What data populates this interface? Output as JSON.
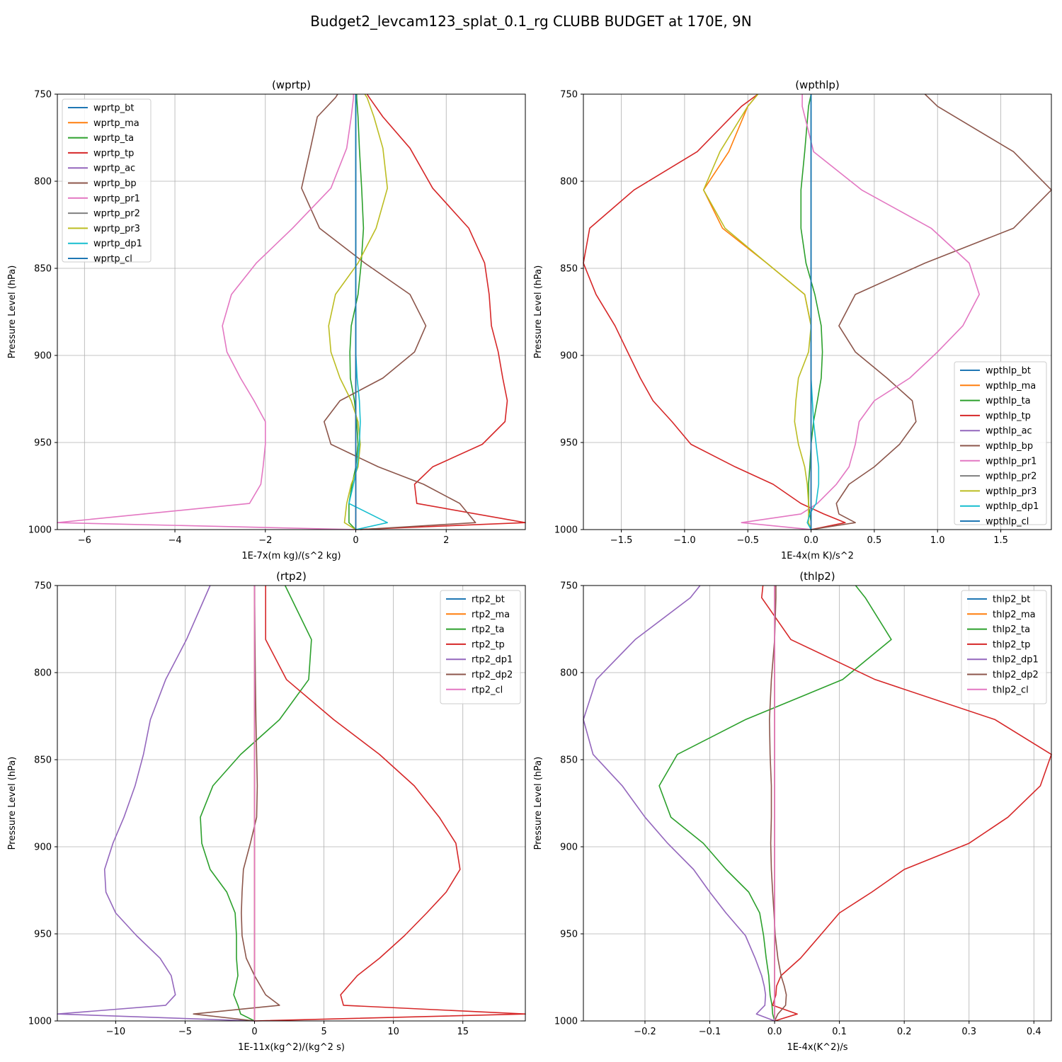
{
  "figure_title": "Budget2_levcam123_splat_0.1_rg CLUBB BUDGET at 170E, 9N",
  "colors": [
    "#1f77b4",
    "#ff7f0e",
    "#2ca02c",
    "#d62728",
    "#9467bd",
    "#8c564b",
    "#e377c2",
    "#7f7f7f",
    "#bcbd22",
    "#17becf"
  ],
  "chart_data": [
    {
      "type": "line",
      "title": "(wprtp)",
      "xlabel": "1E-7x(m kg)/(s^2 kg)",
      "ylabel": "Pressure Level (hPa)",
      "xlim": [
        -6.6,
        3.75
      ],
      "ylim": [
        1000,
        750
      ],
      "xticks": [
        -6,
        -4,
        -2,
        0,
        2
      ],
      "xtick_labels": [
        "−6",
        "−4",
        "−2",
        "0",
        "2"
      ],
      "yticks": [
        750,
        800,
        850,
        900,
        950,
        1000
      ],
      "grid": true,
      "legend_position": "upper left",
      "p": [
        750,
        752,
        763,
        781,
        804,
        827,
        847,
        865,
        883,
        898,
        913,
        926,
        938,
        951,
        964,
        974,
        985,
        996,
        1000
      ],
      "series": [
        {
          "name": "wprtp_bt",
          "color": "#1f77b4",
          "x": [
            0,
            0,
            0,
            0,
            0,
            0,
            0,
            0,
            0,
            0,
            0,
            0,
            0,
            0,
            0,
            0,
            0,
            0,
            0
          ]
        },
        {
          "name": "wprtp_ma",
          "color": "#ff7f0e",
          "x": [
            0,
            0,
            0,
            0,
            0,
            0,
            0,
            0,
            0,
            0,
            0,
            0,
            0,
            0,
            0,
            0,
            0,
            0,
            0
          ]
        },
        {
          "name": "wprtp_ta",
          "color": "#2ca02c",
          "x": [
            0.02,
            0.02,
            0.05,
            0.08,
            0.13,
            0.17,
            0.12,
            0.05,
            -0.1,
            -0.13,
            -0.12,
            -0.03,
            0.02,
            0.05,
            0.0,
            -0.08,
            -0.15,
            -0.15,
            0
          ]
        },
        {
          "name": "wprtp_tp",
          "color": "#d62728",
          "x": [
            0.25,
            0.3,
            0.6,
            1.2,
            1.7,
            2.5,
            2.85,
            2.95,
            3.0,
            3.15,
            3.25,
            3.35,
            3.3,
            2.8,
            1.7,
            1.3,
            1.35,
            3.75,
            0
          ]
        },
        {
          "name": "wprtp_ac",
          "color": "#9467bd",
          "x": [
            0,
            0,
            0,
            0,
            0,
            0,
            0,
            0,
            0,
            0,
            0,
            0,
            0,
            0,
            0,
            0,
            0,
            0,
            0
          ]
        },
        {
          "name": "wprtp_bp",
          "color": "#8c564b",
          "x": [
            -0.4,
            -0.45,
            -0.85,
            -1.0,
            -1.2,
            -0.8,
            0.2,
            1.2,
            1.55,
            1.3,
            0.6,
            -0.35,
            -0.7,
            -0.55,
            0.5,
            1.5,
            2.3,
            2.65,
            0.1
          ]
        },
        {
          "name": "wprtp_pr1",
          "color": "#e377c2",
          "x": [
            -0.05,
            -0.05,
            -0.1,
            -0.2,
            -0.55,
            -1.4,
            -2.2,
            -2.75,
            -2.95,
            -2.85,
            -2.55,
            -2.25,
            -2.0,
            -2.0,
            -2.05,
            -2.1,
            -2.35,
            -6.6,
            0
          ]
        },
        {
          "name": "wprtp_pr2",
          "color": "#7f7f7f",
          "x": [
            0,
            0,
            0,
            0,
            0,
            0,
            0,
            0,
            0,
            0,
            0,
            0,
            0,
            0,
            0,
            0,
            0,
            0,
            0
          ]
        },
        {
          "name": "wprtp_pr3",
          "color": "#bcbd22",
          "x": [
            0.2,
            0.25,
            0.4,
            0.6,
            0.7,
            0.45,
            0.05,
            -0.45,
            -0.6,
            -0.55,
            -0.35,
            -0.1,
            0.05,
            0.1,
            0.05,
            -0.1,
            -0.2,
            -0.25,
            0
          ]
        },
        {
          "name": "wprtp_dp1",
          "color": "#17becf",
          "x": [
            0,
            0,
            0,
            0,
            0,
            0,
            0,
            0,
            0,
            0,
            0.03,
            0.08,
            0.1,
            0.08,
            0.03,
            -0.05,
            -0.15,
            0.7,
            0
          ]
        },
        {
          "name": "wprtp_cl",
          "color": "#1f77b4",
          "x": [
            0,
            0,
            0,
            0,
            0,
            0,
            0,
            0,
            0,
            0,
            0,
            0,
            0,
            0,
            0,
            0,
            0,
            0,
            0
          ]
        }
      ]
    },
    {
      "type": "line",
      "title": "(wpthlp)",
      "xlabel": "1E-4x(m K)/s^2",
      "ylabel": "Pressure Level (hPa)",
      "xlim": [
        -1.8,
        1.9
      ],
      "ylim": [
        1000,
        750
      ],
      "xticks": [
        -1.5,
        -1.0,
        -0.5,
        0.0,
        0.5,
        1.0,
        1.5
      ],
      "xtick_labels": [
        "−1.5",
        "−1.0",
        "−0.5",
        "0.0",
        "0.5",
        "1.0",
        "1.5"
      ],
      "yticks": [
        750,
        800,
        850,
        900,
        950,
        1000
      ],
      "grid": true,
      "legend_position": "lower right",
      "p": [
        750,
        757,
        783,
        805,
        827,
        847,
        865,
        883,
        898,
        913,
        926,
        938,
        951,
        964,
        974,
        985,
        991,
        996,
        1000
      ],
      "series": [
        {
          "name": "wpthlp_bt",
          "color": "#1f77b4",
          "x": [
            0,
            0,
            0,
            0,
            0,
            0,
            0,
            0,
            0,
            0,
            0,
            0,
            0,
            0,
            0,
            0,
            0,
            0,
            0
          ]
        },
        {
          "name": "wpthlp_ma",
          "color": "#ff7f0e",
          "x": [
            -0.42,
            -0.5,
            -0.65,
            -0.85,
            -0.7,
            -0.35,
            -0.05,
            0,
            0,
            0,
            0,
            0,
            0,
            0,
            0,
            0,
            0,
            0,
            0
          ]
        },
        {
          "name": "wpthlp_ta",
          "color": "#2ca02c",
          "x": [
            0,
            -0.02,
            -0.05,
            -0.08,
            -0.08,
            -0.04,
            0.03,
            0.08,
            0.09,
            0.08,
            0.05,
            0.02,
            0,
            -0.01,
            -0.02,
            -0.02,
            -0.01,
            0,
            0
          ]
        },
        {
          "name": "wpthlp_tp",
          "color": "#d62728",
          "x": [
            -0.42,
            -0.55,
            -0.9,
            -1.4,
            -1.75,
            -1.8,
            -1.7,
            -1.55,
            -1.45,
            -1.35,
            -1.25,
            -1.1,
            -0.95,
            -0.6,
            -0.3,
            -0.08,
            0.1,
            0.27,
            0
          ]
        },
        {
          "name": "wpthlp_ac",
          "color": "#9467bd",
          "x": [
            0,
            0,
            0,
            0,
            0,
            0,
            0,
            0,
            0,
            0,
            0,
            0,
            0,
            0,
            0,
            0,
            0,
            0,
            0
          ]
        },
        {
          "name": "wpthlp_bp",
          "color": "#8c564b",
          "x": [
            0.9,
            1.0,
            1.6,
            1.9,
            1.6,
            0.9,
            0.35,
            0.22,
            0.35,
            0.6,
            0.8,
            0.83,
            0.7,
            0.5,
            0.3,
            0.2,
            0.22,
            0.35,
            0
          ]
        },
        {
          "name": "wpthlp_pr1",
          "color": "#e377c2",
          "x": [
            -0.07,
            -0.07,
            0.02,
            0.4,
            0.95,
            1.25,
            1.33,
            1.2,
            1.0,
            0.78,
            0.5,
            0.38,
            0.35,
            0.3,
            0.2,
            0.05,
            -0.08,
            -0.55,
            0
          ]
        },
        {
          "name": "wpthlp_pr2",
          "color": "#7f7f7f",
          "x": [
            0,
            0,
            0,
            0,
            0,
            0,
            0,
            0,
            0,
            0,
            0,
            0,
            0,
            0,
            0,
            0,
            0,
            0,
            0
          ]
        },
        {
          "name": "wpthlp_pr3",
          "color": "#bcbd22",
          "x": [
            -0.42,
            -0.5,
            -0.72,
            -0.85,
            -0.68,
            -0.35,
            -0.05,
            0,
            -0.02,
            -0.1,
            -0.12,
            -0.13,
            -0.1,
            -0.05,
            -0.03,
            -0.02,
            -0.02,
            -0.02,
            0
          ]
        },
        {
          "name": "wpthlp_dp1",
          "color": "#17becf",
          "x": [
            0,
            0,
            0,
            0,
            0,
            0,
            0,
            0,
            0,
            0,
            0.01,
            0.02,
            0.04,
            0.06,
            0.06,
            0.04,
            -0.01,
            -0.03,
            0
          ]
        },
        {
          "name": "wpthlp_cl",
          "color": "#1f77b4",
          "x": [
            0,
            0,
            0,
            0,
            0,
            0,
            0,
            0,
            0,
            0,
            0,
            0,
            0,
            0,
            0,
            0,
            0,
            0,
            0
          ]
        }
      ]
    },
    {
      "type": "line",
      "title": "(rtp2)",
      "xlabel": "1E-11x(kg^2)/(kg^2 s)",
      "ylabel": "Pressure Level (hPa)",
      "xlim": [
        -14.2,
        19.5
      ],
      "ylim": [
        1000,
        750
      ],
      "xticks": [
        -10,
        -5,
        0,
        5,
        10,
        15
      ],
      "xtick_labels": [
        "−10",
        "−5",
        "0",
        "5",
        "10",
        "15"
      ],
      "yticks": [
        750,
        800,
        850,
        900,
        950,
        1000
      ],
      "grid": true,
      "legend_position": "upper right",
      "p": [
        750,
        781,
        804,
        827,
        847,
        865,
        883,
        898,
        913,
        926,
        938,
        951,
        964,
        974,
        985,
        991,
        996,
        1000
      ],
      "series": [
        {
          "name": "rtp2_bt",
          "color": "#1f77b4",
          "x": [
            0,
            0,
            0,
            0,
            0,
            0,
            0,
            0,
            0,
            0,
            0,
            0,
            0,
            0,
            0,
            0,
            0,
            0
          ]
        },
        {
          "name": "rtp2_ma",
          "color": "#ff7f0e",
          "x": [
            0,
            0,
            0,
            0,
            0,
            0,
            0,
            0,
            0,
            0,
            0,
            0,
            0,
            0,
            0,
            0,
            0,
            0
          ]
        },
        {
          "name": "rtp2_ta",
          "color": "#2ca02c",
          "x": [
            2.2,
            4.1,
            3.9,
            1.8,
            -1.0,
            -3.0,
            -3.9,
            -3.8,
            -3.2,
            -2.0,
            -1.4,
            -1.3,
            -1.3,
            -1.2,
            -1.5,
            -1.2,
            -1.0,
            0
          ]
        },
        {
          "name": "rtp2_tp",
          "color": "#d62728",
          "x": [
            0.8,
            0.8,
            2.3,
            5.7,
            9.0,
            11.5,
            13.3,
            14.5,
            14.8,
            13.8,
            12.4,
            10.8,
            9.0,
            7.4,
            6.2,
            6.4,
            19.5,
            0
          ]
        },
        {
          "name": "rtp2_dp1",
          "color": "#9467bd",
          "x": [
            -3.2,
            -4.9,
            -6.4,
            -7.5,
            -8.0,
            -8.6,
            -9.4,
            -10.2,
            -10.8,
            -10.7,
            -10.0,
            -8.5,
            -6.8,
            -6.0,
            -5.7,
            -6.4,
            -14.2,
            0
          ]
        },
        {
          "name": "rtp2_dp2",
          "color": "#8c564b",
          "x": [
            0,
            0.03,
            0.06,
            0.1,
            0.15,
            0.2,
            0.15,
            -0.3,
            -0.8,
            -0.9,
            -0.95,
            -0.9,
            -0.6,
            0,
            0.8,
            1.8,
            -4.4,
            0
          ]
        },
        {
          "name": "rtp2_cl",
          "color": "#e377c2",
          "x": [
            0,
            0,
            0,
            0,
            0,
            0,
            0,
            0,
            0,
            0,
            0,
            0,
            0,
            0,
            0,
            0,
            0,
            0
          ]
        }
      ]
    },
    {
      "type": "line",
      "title": "(thlp2)",
      "xlabel": "1E-4x(K^2)/s",
      "ylabel": "Pressure Level (hPa)",
      "xlim": [
        -0.295,
        0.427
      ],
      "ylim": [
        1000,
        750
      ],
      "xticks": [
        -0.2,
        -0.1,
        0.0,
        0.1,
        0.2,
        0.3,
        0.4
      ],
      "xtick_labels": [
        "−0.2",
        "−0.1",
        "0.0",
        "0.1",
        "0.2",
        "0.3",
        "0.4"
      ],
      "yticks": [
        750,
        800,
        850,
        900,
        950,
        1000
      ],
      "grid": true,
      "legend_position": "upper right",
      "p": [
        750,
        757,
        781,
        804,
        827,
        847,
        865,
        883,
        898,
        913,
        926,
        938,
        951,
        964,
        974,
        980,
        985,
        991,
        996,
        1000
      ],
      "series": [
        {
          "name": "thlp2_bt",
          "color": "#1f77b4",
          "x": [
            0,
            0,
            0,
            0,
            0,
            0,
            0,
            0,
            0,
            0,
            0,
            0,
            0,
            0,
            0,
            0,
            0,
            0,
            0,
            0
          ]
        },
        {
          "name": "thlp2_ma",
          "color": "#ff7f0e",
          "x": [
            0,
            0,
            0,
            0,
            0,
            0,
            0,
            0,
            0,
            0,
            0,
            0,
            0,
            0,
            0,
            0,
            0,
            0,
            0,
            0
          ]
        },
        {
          "name": "thlp2_ta",
          "color": "#2ca02c",
          "x": [
            0.125,
            0.14,
            0.18,
            0.105,
            -0.045,
            -0.15,
            -0.178,
            -0.16,
            -0.11,
            -0.075,
            -0.04,
            -0.023,
            -0.017,
            -0.013,
            -0.009,
            -0.008,
            -0.007,
            -0.004,
            -0.003,
            0
          ]
        },
        {
          "name": "thlp2_tp",
          "color": "#d62728",
          "x": [
            -0.018,
            -0.02,
            0.025,
            0.155,
            0.34,
            0.427,
            0.41,
            0.36,
            0.3,
            0.2,
            0.15,
            0.1,
            0.07,
            0.04,
            0.01,
            0.003,
            0.002,
            -0.003,
            0.035,
            0
          ]
        },
        {
          "name": "thlp2_dp1",
          "color": "#9467bd",
          "x": [
            -0.115,
            -0.13,
            -0.215,
            -0.275,
            -0.295,
            -0.28,
            -0.235,
            -0.2,
            -0.165,
            -0.125,
            -0.1,
            -0.075,
            -0.045,
            -0.03,
            -0.02,
            -0.016,
            -0.014,
            -0.015,
            -0.028,
            0
          ]
        },
        {
          "name": "thlp2_dp2",
          "color": "#8c564b",
          "x": [
            0.002,
            0.002,
            0.0,
            -0.005,
            -0.008,
            -0.007,
            -0.005,
            -0.005,
            -0.006,
            -0.005,
            -0.003,
            -0.001,
            0.001,
            0.005,
            0.01,
            0.015,
            0.018,
            0.017,
            0.005,
            0
          ]
        },
        {
          "name": "thlp2_cl",
          "color": "#e377c2",
          "x": [
            0,
            0,
            0,
            0,
            0,
            0,
            0,
            0,
            0,
            0,
            0,
            0,
            0,
            0,
            0,
            0,
            0,
            0,
            0,
            0
          ]
        }
      ]
    }
  ]
}
